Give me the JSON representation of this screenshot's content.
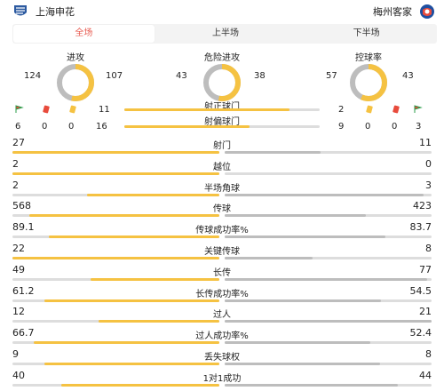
{
  "header": {
    "home_team": "上海申花",
    "away_team": "梅州客家"
  },
  "tabs": [
    {
      "label": "全场",
      "active": true
    },
    {
      "label": "上半场",
      "active": false
    },
    {
      "label": "下半场",
      "active": false
    }
  ],
  "rings": [
    {
      "title": "进攻",
      "home": 124,
      "away": 107
    },
    {
      "title": "危险进攻",
      "home": 43,
      "away": 38
    },
    {
      "title": "控球率",
      "home": 57,
      "away": 43
    }
  ],
  "shots_on_target": {
    "label": "射正球门",
    "home": 11,
    "away": 2
  },
  "shots_off_target": {
    "label": "射偏球门",
    "home": 16,
    "away": 9
  },
  "cards_home": {
    "red": 0,
    "yellow": 0,
    "corner_flag": 6
  },
  "cards_away": {
    "red": 0,
    "yellow": 0,
    "corner_flag": 3
  },
  "colors": {
    "home_bar": "#f5c242",
    "away_bar": "#bdbdbd",
    "track": "#dddddd",
    "accent": "#e85a4f"
  },
  "stats": [
    {
      "name": "射门",
      "home": "27",
      "away": "11",
      "home_num": 27,
      "away_num": 11
    },
    {
      "name": "越位",
      "home": "2",
      "away": "0",
      "home_num": 2,
      "away_num": 0
    },
    {
      "name": "半场角球",
      "home": "2",
      "away": "3",
      "home_num": 2,
      "away_num": 3
    },
    {
      "name": "传球",
      "home": "568",
      "away": "423",
      "home_num": 568,
      "away_num": 423
    },
    {
      "name": "传球成功率%",
      "home": "89.1",
      "away": "83.7",
      "home_num": 89.1,
      "away_num": 83.7
    },
    {
      "name": "关键传球",
      "home": "22",
      "away": "8",
      "home_num": 22,
      "away_num": 8
    },
    {
      "name": "长传",
      "home": "49",
      "away": "77",
      "home_num": 49,
      "away_num": 77
    },
    {
      "name": "长传成功率%",
      "home": "61.2",
      "away": "54.5",
      "home_num": 61.2,
      "away_num": 54.5
    },
    {
      "name": "过人",
      "home": "12",
      "away": "21",
      "home_num": 12,
      "away_num": 21
    },
    {
      "name": "过人成功率%",
      "home": "66.7",
      "away": "52.4",
      "home_num": 66.7,
      "away_num": 52.4
    },
    {
      "name": "丢失球权",
      "home": "9",
      "away": "8",
      "home_num": 9,
      "away_num": 8
    },
    {
      "name": "1对1成功",
      "home": "40",
      "away": "44",
      "home_num": 40,
      "away_num": 44
    }
  ]
}
